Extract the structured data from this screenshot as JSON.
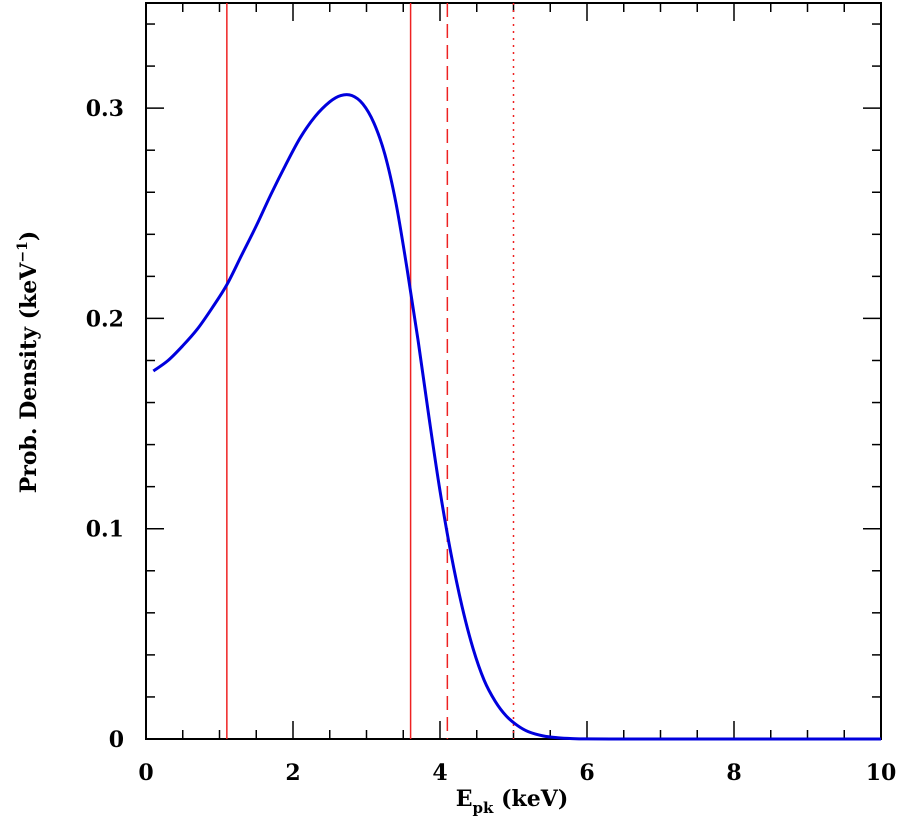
{
  "chart_data": {
    "type": "line",
    "xlabel": {
      "main": "E",
      "sub": "pk",
      "rest": " (keV)"
    },
    "ylabel": {
      "main": "Prob. Density (keV",
      "sup": "−1",
      "rest": ")"
    },
    "xlim": [
      0,
      10
    ],
    "ylim": [
      0,
      0.35
    ],
    "xticks": [
      0,
      2,
      4,
      6,
      8,
      10
    ],
    "xtick_labels": [
      "0",
      "2",
      "4",
      "6",
      "8",
      "10"
    ],
    "yticks": [
      0,
      0.1,
      0.2,
      0.3
    ],
    "ytick_labels": [
      "0",
      "0.1",
      "0.2",
      "0.3"
    ],
    "x_minor_step": 0.5,
    "y_minor_step": 0.02,
    "grid": false,
    "series": [
      {
        "color": "#0000dd",
        "points": [
          [
            0.1,
            0.175
          ],
          [
            0.3,
            0.18
          ],
          [
            0.5,
            0.187
          ],
          [
            0.7,
            0.195
          ],
          [
            0.9,
            0.205
          ],
          [
            1.1,
            0.216
          ],
          [
            1.3,
            0.23
          ],
          [
            1.5,
            0.244
          ],
          [
            1.7,
            0.259
          ],
          [
            1.9,
            0.273
          ],
          [
            2.1,
            0.286
          ],
          [
            2.3,
            0.296
          ],
          [
            2.5,
            0.303
          ],
          [
            2.65,
            0.306
          ],
          [
            2.8,
            0.306
          ],
          [
            2.95,
            0.302
          ],
          [
            3.1,
            0.293
          ],
          [
            3.25,
            0.278
          ],
          [
            3.4,
            0.255
          ],
          [
            3.55,
            0.224
          ],
          [
            3.7,
            0.19
          ],
          [
            3.85,
            0.153
          ],
          [
            4.0,
            0.118
          ],
          [
            4.15,
            0.088
          ],
          [
            4.3,
            0.063
          ],
          [
            4.45,
            0.043
          ],
          [
            4.6,
            0.028
          ],
          [
            4.75,
            0.018
          ],
          [
            4.9,
            0.011
          ],
          [
            5.05,
            0.0065
          ],
          [
            5.2,
            0.0035
          ],
          [
            5.4,
            0.0015
          ],
          [
            5.6,
            0.0006
          ],
          [
            5.8,
            0.0002
          ],
          [
            6.0,
            5e-05
          ],
          [
            6.5,
            0.0
          ],
          [
            7.0,
            0.0
          ],
          [
            8.0,
            0.0
          ],
          [
            9.0,
            0.0
          ],
          [
            10.0,
            0.0
          ]
        ]
      }
    ],
    "vlines": [
      {
        "x": 1.1,
        "style": "solid",
        "color": "#ee2222"
      },
      {
        "x": 3.6,
        "style": "solid",
        "color": "#ee2222"
      },
      {
        "x": 4.1,
        "style": "dashed",
        "color": "#ee2222"
      },
      {
        "x": 5.0,
        "style": "dotted",
        "color": "#ee2222"
      }
    ]
  }
}
